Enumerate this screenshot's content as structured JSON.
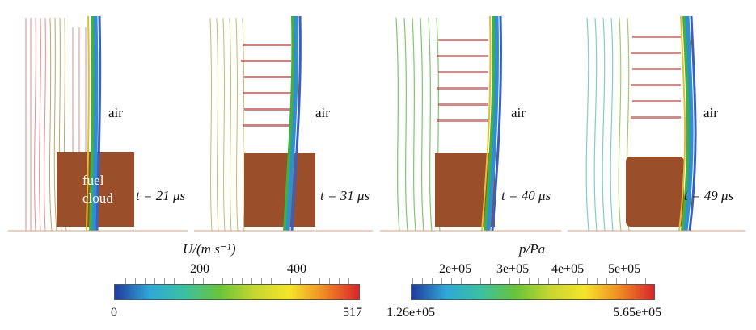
{
  "panels": [
    {
      "air_label": "air",
      "time_label": "t = 21 μs",
      "cloud_label_line1": "fuel",
      "cloud_label_line2": "cloud"
    },
    {
      "air_label": "air",
      "time_label": "t = 31 μs"
    },
    {
      "air_label": "air",
      "time_label": "t = 40 μs"
    },
    {
      "air_label": "air",
      "time_label": "t = 49 μs"
    }
  ],
  "colorbars": {
    "velocity": {
      "title": "U/(m·s⁻¹)",
      "min": "0",
      "max": "517",
      "ticks": [
        "200",
        "400"
      ],
      "colors": [
        "#1f3b9c",
        "#2fa8d8",
        "#3cc0a0",
        "#68c43a",
        "#c6d630",
        "#f4e52a",
        "#f08a24",
        "#d8262a"
      ]
    },
    "pressure": {
      "title": "p/Pa",
      "min": "1.26e+05",
      "max": "5.65e+05",
      "ticks": [
        "2e+05",
        "3e+05",
        "4e+05",
        "5e+05"
      ],
      "colors": [
        "#1f3b9c",
        "#2fa8d8",
        "#3cc0a0",
        "#68c43a",
        "#c6d630",
        "#f4e52a",
        "#f08a24",
        "#d8262a"
      ]
    }
  },
  "colors": {
    "fuel_cloud": "#9a4e2a",
    "shock_band": "#2f8fd0"
  }
}
